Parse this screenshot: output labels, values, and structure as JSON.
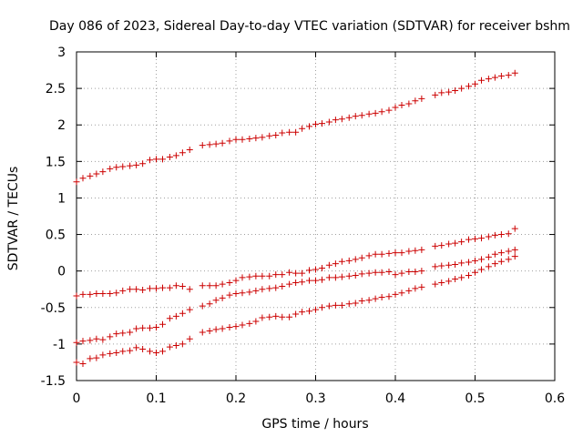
{
  "chart_data": {
    "type": "scatter",
    "title": "Day 086 of 2023, Sidereal Day-to-day VTEC variation (SDTVAR) for receiver bshm",
    "xlabel": "GPS time / hours",
    "ylabel": "SDTVAR / TECUs",
    "xlim": [
      0,
      0.6
    ],
    "ylim": [
      -1.5,
      3
    ],
    "xticks": [
      0,
      0.1,
      0.2,
      0.3,
      0.4,
      0.5,
      0.6
    ],
    "xtick_labels": [
      "0",
      "0.1",
      "0.2",
      "0.3",
      "0.4",
      "0.5",
      "0.6"
    ],
    "yticks": [
      -1.5,
      -1,
      -0.5,
      0,
      0.5,
      1,
      1.5,
      2,
      2.5,
      3
    ],
    "ytick_labels": [
      "-1.5",
      "-1",
      "-0.5",
      "0",
      "0.5",
      "1",
      "1.5",
      "2",
      "2.5",
      "3"
    ],
    "grid": true,
    "marker": "+",
    "color": "#cc0000",
    "series": [
      {
        "name": "series-1",
        "x": [
          0.0,
          0.008,
          0.017,
          0.025,
          0.033,
          0.042,
          0.05,
          0.058,
          0.067,
          0.075,
          0.083,
          0.092,
          0.1,
          0.108,
          0.117,
          0.125,
          0.133,
          0.142,
          0.158,
          0.167,
          0.175,
          0.183,
          0.192,
          0.2,
          0.208,
          0.217,
          0.225,
          0.233,
          0.242,
          0.25,
          0.258,
          0.267,
          0.275,
          0.283,
          0.292,
          0.3,
          0.308,
          0.317,
          0.325,
          0.333,
          0.342,
          0.35,
          0.358,
          0.367,
          0.375,
          0.383,
          0.392,
          0.4,
          0.408,
          0.417,
          0.425,
          0.433,
          0.45,
          0.458,
          0.467,
          0.475,
          0.483,
          0.492,
          0.5,
          0.508,
          0.517,
          0.525,
          0.533,
          0.542,
          0.55
        ],
        "y": [
          1.22,
          1.27,
          1.3,
          1.33,
          1.36,
          1.4,
          1.42,
          1.43,
          1.44,
          1.45,
          1.47,
          1.52,
          1.53,
          1.53,
          1.56,
          1.58,
          1.62,
          1.66,
          1.72,
          1.73,
          1.74,
          1.75,
          1.78,
          1.8,
          1.8,
          1.81,
          1.82,
          1.83,
          1.85,
          1.86,
          1.89,
          1.9,
          1.9,
          1.95,
          1.98,
          2.01,
          2.02,
          2.04,
          2.07,
          2.08,
          2.1,
          2.12,
          2.13,
          2.15,
          2.16,
          2.18,
          2.2,
          2.24,
          2.27,
          2.29,
          2.33,
          2.36,
          2.41,
          2.44,
          2.45,
          2.47,
          2.5,
          2.53,
          2.56,
          2.61,
          2.63,
          2.65,
          2.67,
          2.68,
          2.71
        ]
      },
      {
        "name": "series-2",
        "x": [
          0.0,
          0.008,
          0.017,
          0.025,
          0.033,
          0.042,
          0.05,
          0.058,
          0.067,
          0.075,
          0.083,
          0.092,
          0.1,
          0.108,
          0.117,
          0.125,
          0.133,
          0.142,
          0.158,
          0.167,
          0.175,
          0.183,
          0.192,
          0.2,
          0.208,
          0.217,
          0.225,
          0.233,
          0.242,
          0.25,
          0.258,
          0.267,
          0.275,
          0.283,
          0.292,
          0.3,
          0.308,
          0.317,
          0.325,
          0.333,
          0.342,
          0.35,
          0.358,
          0.367,
          0.375,
          0.383,
          0.392,
          0.4,
          0.408,
          0.417,
          0.425,
          0.433,
          0.45,
          0.458,
          0.467,
          0.475,
          0.483,
          0.492,
          0.5,
          0.508,
          0.517,
          0.525,
          0.533,
          0.542,
          0.55
        ],
        "y": [
          -0.34,
          -0.32,
          -0.32,
          -0.31,
          -0.31,
          -0.31,
          -0.3,
          -0.27,
          -0.25,
          -0.25,
          -0.26,
          -0.24,
          -0.24,
          -0.23,
          -0.23,
          -0.2,
          -0.21,
          -0.25,
          -0.2,
          -0.2,
          -0.2,
          -0.18,
          -0.16,
          -0.13,
          -0.09,
          -0.08,
          -0.07,
          -0.07,
          -0.07,
          -0.05,
          -0.05,
          -0.02,
          -0.03,
          -0.03,
          0.01,
          0.02,
          0.04,
          0.08,
          0.1,
          0.13,
          0.14,
          0.16,
          0.18,
          0.21,
          0.23,
          0.23,
          0.24,
          0.25,
          0.25,
          0.27,
          0.28,
          0.29,
          0.34,
          0.35,
          0.37,
          0.38,
          0.4,
          0.43,
          0.44,
          0.45,
          0.47,
          0.49,
          0.5,
          0.51,
          0.58
        ]
      },
      {
        "name": "series-3",
        "x": [
          0.0,
          0.008,
          0.017,
          0.025,
          0.033,
          0.042,
          0.05,
          0.058,
          0.067,
          0.075,
          0.083,
          0.092,
          0.1,
          0.108,
          0.117,
          0.125,
          0.133,
          0.142,
          0.158,
          0.167,
          0.175,
          0.183,
          0.192,
          0.2,
          0.208,
          0.217,
          0.225,
          0.233,
          0.242,
          0.25,
          0.258,
          0.267,
          0.275,
          0.283,
          0.292,
          0.3,
          0.308,
          0.317,
          0.325,
          0.333,
          0.342,
          0.35,
          0.358,
          0.367,
          0.375,
          0.383,
          0.392,
          0.4,
          0.408,
          0.417,
          0.425,
          0.433,
          0.45,
          0.458,
          0.467,
          0.475,
          0.483,
          0.492,
          0.5,
          0.508,
          0.517,
          0.525,
          0.533,
          0.542,
          0.55
        ],
        "y": [
          -0.98,
          -0.96,
          -0.95,
          -0.93,
          -0.94,
          -0.9,
          -0.86,
          -0.85,
          -0.84,
          -0.79,
          -0.78,
          -0.78,
          -0.77,
          -0.73,
          -0.65,
          -0.62,
          -0.58,
          -0.53,
          -0.48,
          -0.45,
          -0.4,
          -0.37,
          -0.33,
          -0.31,
          -0.3,
          -0.29,
          -0.27,
          -0.25,
          -0.24,
          -0.23,
          -0.21,
          -0.18,
          -0.16,
          -0.15,
          -0.13,
          -0.13,
          -0.12,
          -0.09,
          -0.09,
          -0.08,
          -0.07,
          -0.06,
          -0.04,
          -0.03,
          -0.02,
          -0.02,
          -0.01,
          -0.05,
          -0.03,
          -0.01,
          -0.01,
          0.0,
          0.06,
          0.07,
          0.08,
          0.09,
          0.11,
          0.12,
          0.14,
          0.16,
          0.19,
          0.23,
          0.25,
          0.27,
          0.29
        ]
      },
      {
        "name": "series-4",
        "x": [
          0.0,
          0.008,
          0.017,
          0.025,
          0.033,
          0.042,
          0.05,
          0.058,
          0.067,
          0.075,
          0.083,
          0.092,
          0.1,
          0.108,
          0.117,
          0.125,
          0.133,
          0.142,
          0.158,
          0.167,
          0.175,
          0.183,
          0.192,
          0.2,
          0.208,
          0.217,
          0.225,
          0.233,
          0.242,
          0.25,
          0.258,
          0.267,
          0.275,
          0.283,
          0.292,
          0.3,
          0.308,
          0.317,
          0.325,
          0.333,
          0.342,
          0.35,
          0.358,
          0.367,
          0.375,
          0.383,
          0.392,
          0.4,
          0.408,
          0.417,
          0.425,
          0.433,
          0.45,
          0.458,
          0.467,
          0.475,
          0.483,
          0.492,
          0.5,
          0.508,
          0.517,
          0.525,
          0.533,
          0.542,
          0.55
        ],
        "y": [
          -1.25,
          -1.27,
          -1.2,
          -1.19,
          -1.15,
          -1.13,
          -1.12,
          -1.1,
          -1.09,
          -1.05,
          -1.07,
          -1.1,
          -1.12,
          -1.1,
          -1.04,
          -1.02,
          -1.0,
          -0.93,
          -0.84,
          -0.82,
          -0.8,
          -0.79,
          -0.77,
          -0.76,
          -0.74,
          -0.72,
          -0.69,
          -0.64,
          -0.63,
          -0.62,
          -0.63,
          -0.63,
          -0.59,
          -0.56,
          -0.55,
          -0.53,
          -0.5,
          -0.48,
          -0.47,
          -0.47,
          -0.45,
          -0.44,
          -0.41,
          -0.4,
          -0.38,
          -0.36,
          -0.35,
          -0.32,
          -0.3,
          -0.27,
          -0.24,
          -0.22,
          -0.18,
          -0.16,
          -0.14,
          -0.11,
          -0.09,
          -0.06,
          -0.02,
          0.02,
          0.06,
          0.1,
          0.13,
          0.16,
          0.2
        ]
      }
    ]
  }
}
